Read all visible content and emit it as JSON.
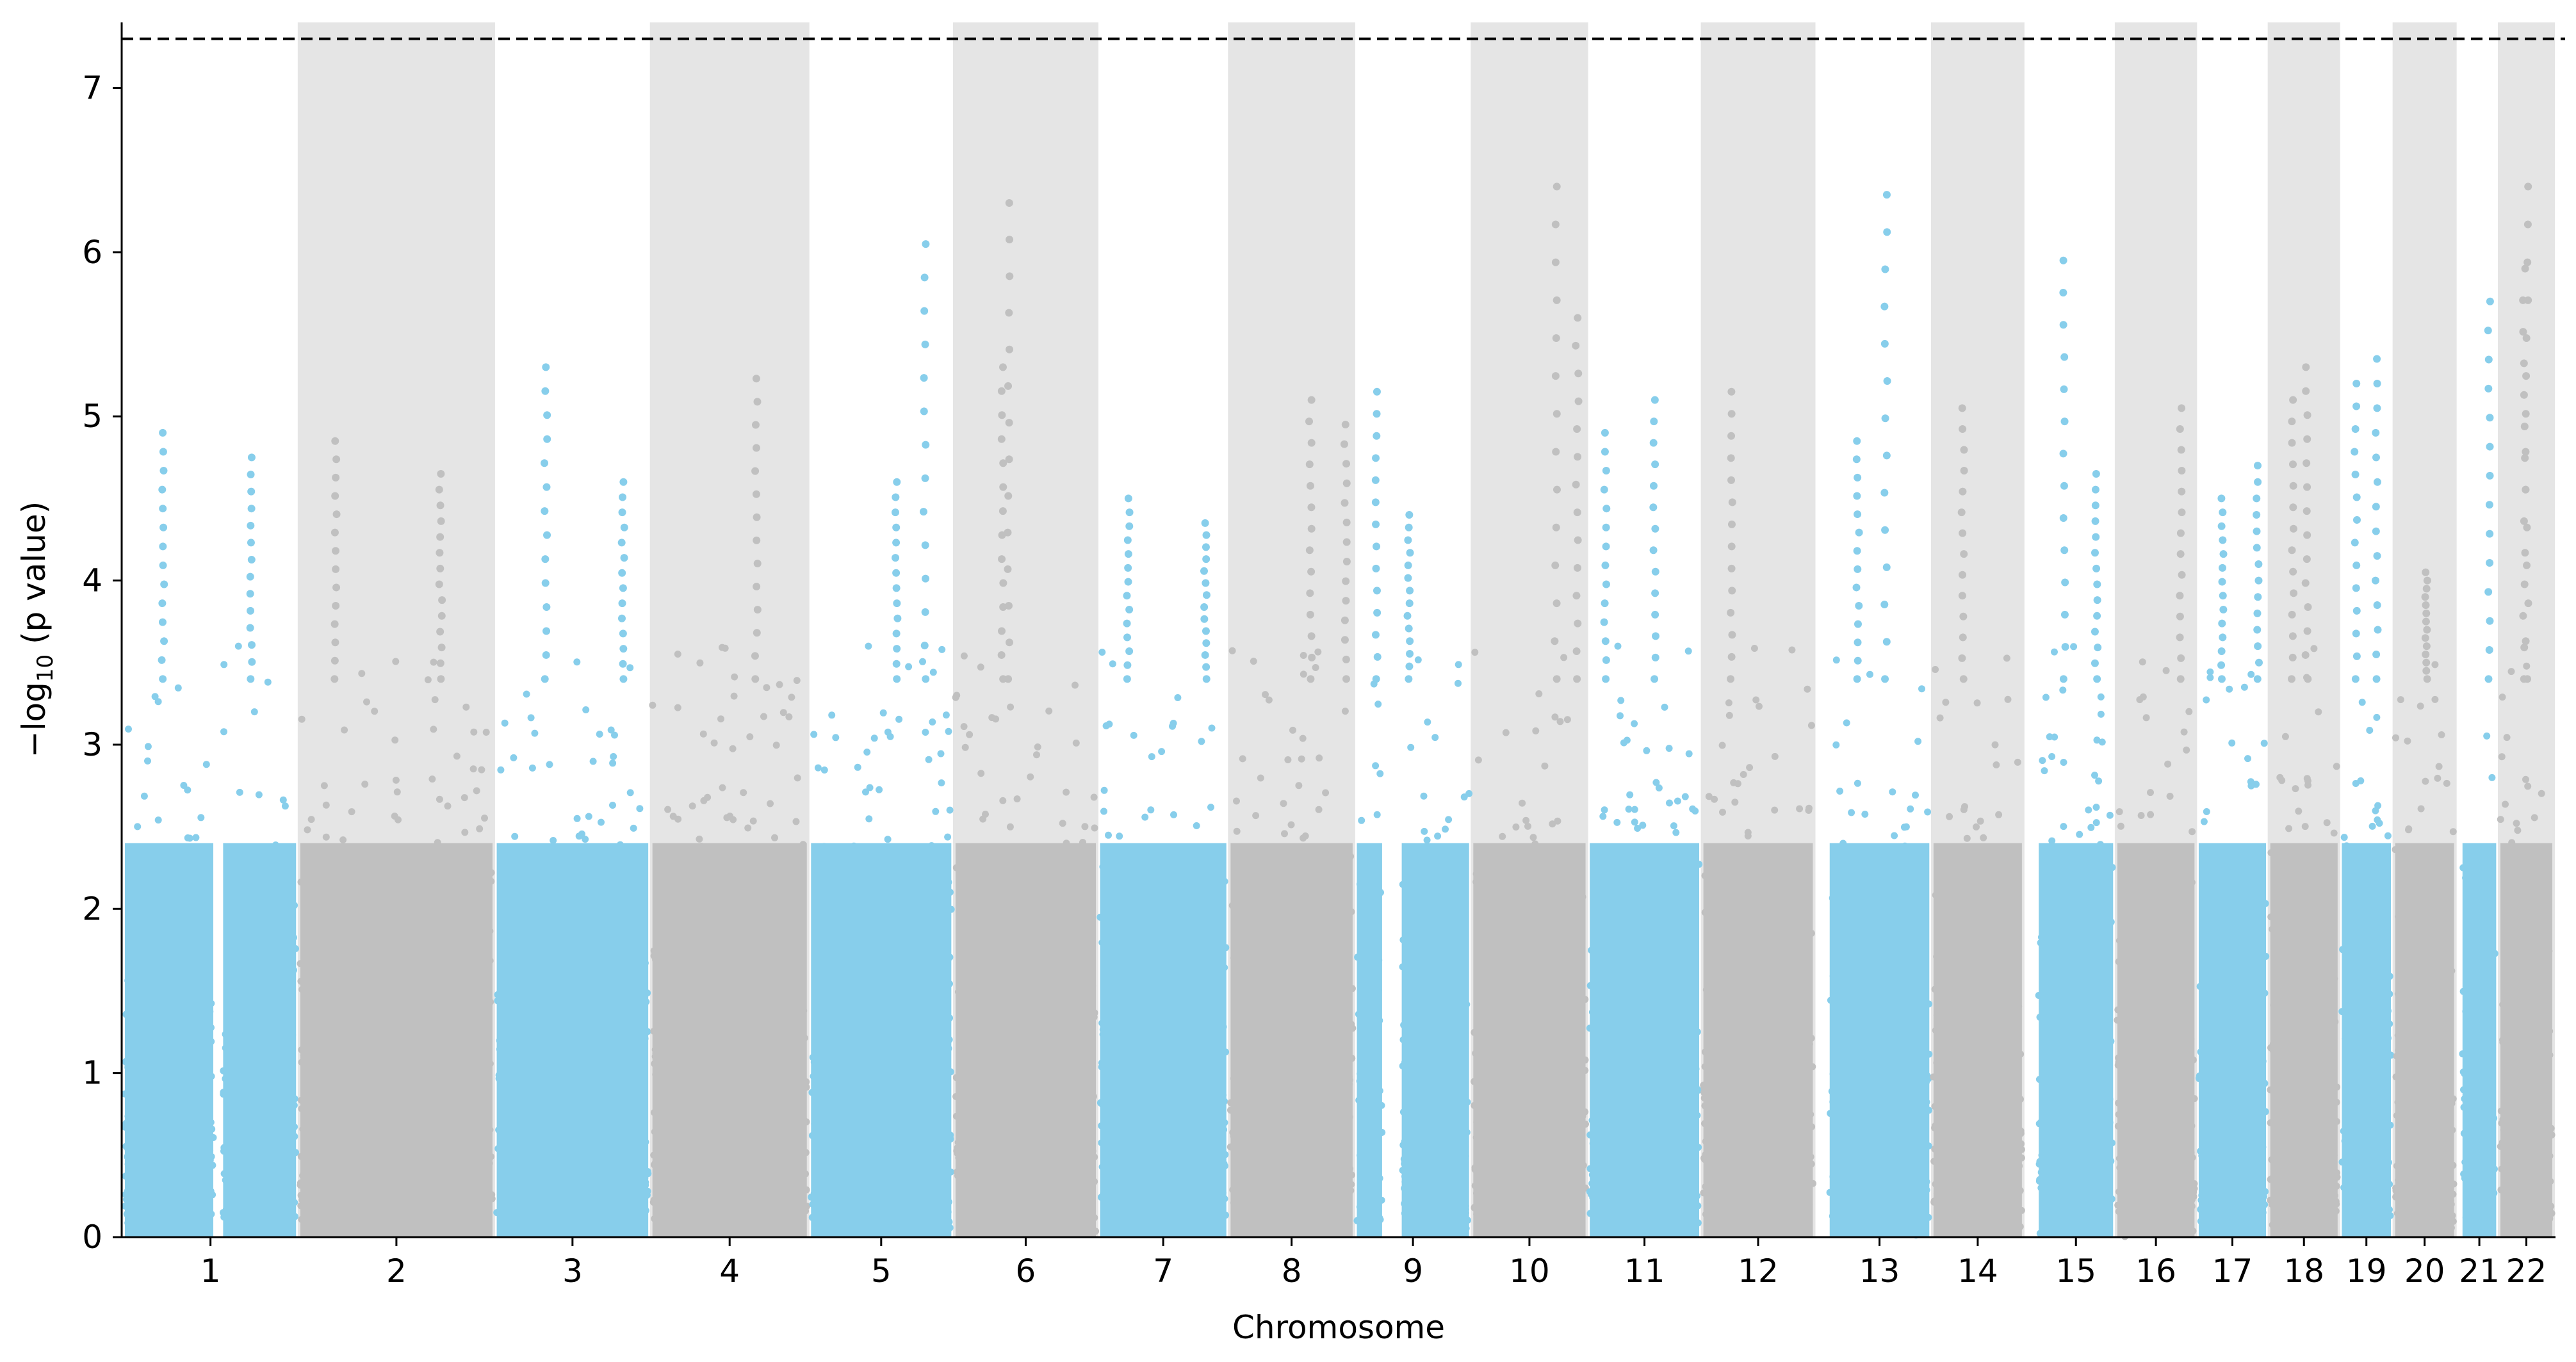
{
  "chart_data": {
    "type": "scatter",
    "subtype": "manhattan",
    "xlabel": "Chromosome",
    "ylabel_main": "−log",
    "ylabel_sub": "10",
    "ylabel_tail": " (p value)",
    "ylim": [
      0,
      7.4
    ],
    "yticks": [
      "0",
      "1",
      "2",
      "3",
      "4",
      "5",
      "6",
      "7"
    ],
    "threshold": 7.3,
    "grid": false,
    "colors": {
      "odd": "#87ceeb",
      "even": "#c0c0c0",
      "band": "#e5e5e5",
      "threshold": "#000000"
    },
    "chromosomes": [
      {
        "label": "1",
        "start": 0,
        "end": 1.22,
        "gaps": [
          [
            0.63,
            0.7
          ]
        ],
        "peaks": [
          [
            0.27,
            4.9
          ],
          [
            0.9,
            4.75
          ]
        ]
      },
      {
        "label": "2",
        "start": 1.25,
        "end": 2.62,
        "gaps": [],
        "peaks": [
          [
            1.5,
            4.85
          ],
          [
            2.25,
            4.65
          ]
        ]
      },
      {
        "label": "3",
        "start": 2.65,
        "end": 3.73,
        "gaps": [],
        "peaks": [
          [
            3.0,
            5.3
          ],
          [
            3.55,
            4.6
          ]
        ]
      },
      {
        "label": "4",
        "start": 3.76,
        "end": 4.86,
        "gaps": [],
        "peaks": [
          [
            4.5,
            5.23
          ]
        ]
      },
      {
        "label": "5",
        "start": 4.89,
        "end": 5.89,
        "gaps": [],
        "peaks": [
          [
            5.7,
            6.05
          ],
          [
            5.5,
            4.6
          ]
        ]
      },
      {
        "label": "6",
        "start": 5.92,
        "end": 6.92,
        "gaps": [],
        "peaks": [
          [
            6.3,
            6.3
          ],
          [
            6.25,
            5.3
          ]
        ]
      },
      {
        "label": "7",
        "start": 6.95,
        "end": 7.85,
        "gaps": [],
        "peaks": [
          [
            7.15,
            4.5
          ],
          [
            7.7,
            4.35
          ]
        ]
      },
      {
        "label": "8",
        "start": 7.88,
        "end": 8.75,
        "gaps": [],
        "peaks": [
          [
            8.45,
            5.1
          ],
          [
            8.7,
            4.95
          ]
        ]
      },
      {
        "label": "9",
        "start": 8.78,
        "end": 9.58,
        "gaps": [
          [
            8.96,
            9.1
          ]
        ],
        "peaks": [
          [
            8.92,
            5.15
          ],
          [
            9.15,
            4.4
          ]
        ]
      },
      {
        "label": "10",
        "start": 9.61,
        "end": 10.41,
        "gaps": [],
        "peaks": [
          [
            10.2,
            6.4
          ],
          [
            10.35,
            5.6
          ]
        ]
      },
      {
        "label": "11",
        "start": 10.44,
        "end": 11.22,
        "gaps": [],
        "peaks": [
          [
            10.9,
            5.1
          ],
          [
            10.55,
            4.9
          ]
        ]
      },
      {
        "label": "12",
        "start": 11.25,
        "end": 12.03,
        "gaps": [],
        "peaks": [
          [
            11.45,
            5.15
          ]
        ]
      },
      {
        "label": "13",
        "start": 12.15,
        "end": 12.86,
        "gaps": [],
        "peaks": [
          [
            12.55,
            6.35
          ],
          [
            12.35,
            4.85
          ]
        ]
      },
      {
        "label": "14",
        "start": 12.89,
        "end": 13.52,
        "gaps": [],
        "peaks": [
          [
            13.1,
            5.05
          ]
        ]
      },
      {
        "label": "15",
        "start": 13.64,
        "end": 14.17,
        "gaps": [],
        "peaks": [
          [
            13.82,
            5.95
          ],
          [
            14.05,
            4.65
          ]
        ]
      },
      {
        "label": "16",
        "start": 14.2,
        "end": 14.75,
        "gaps": [],
        "peaks": [
          [
            14.65,
            5.05
          ]
        ]
      },
      {
        "label": "17",
        "start": 14.78,
        "end": 15.26,
        "gaps": [],
        "peaks": [
          [
            14.95,
            4.5
          ],
          [
            15.2,
            4.7
          ]
        ]
      },
      {
        "label": "18",
        "start": 15.29,
        "end": 15.77,
        "gaps": [],
        "peaks": [
          [
            15.55,
            5.3
          ],
          [
            15.45,
            5.1
          ]
        ]
      },
      {
        "label": "19",
        "start": 15.8,
        "end": 16.15,
        "gaps": [],
        "peaks": [
          [
            16.05,
            5.35
          ],
          [
            15.9,
            5.2
          ]
        ]
      },
      {
        "label": "20",
        "start": 16.18,
        "end": 16.6,
        "gaps": [],
        "peaks": [
          [
            16.4,
            4.05
          ]
        ]
      },
      {
        "label": "21",
        "start": 16.66,
        "end": 16.9,
        "gaps": [],
        "peaks": [
          [
            16.85,
            5.7
          ]
        ]
      },
      {
        "label": "22",
        "start": 16.93,
        "end": 17.3,
        "gaps": [],
        "peaks": [
          [
            17.12,
            6.4
          ],
          [
            17.1,
            5.9
          ]
        ]
      }
    ]
  }
}
